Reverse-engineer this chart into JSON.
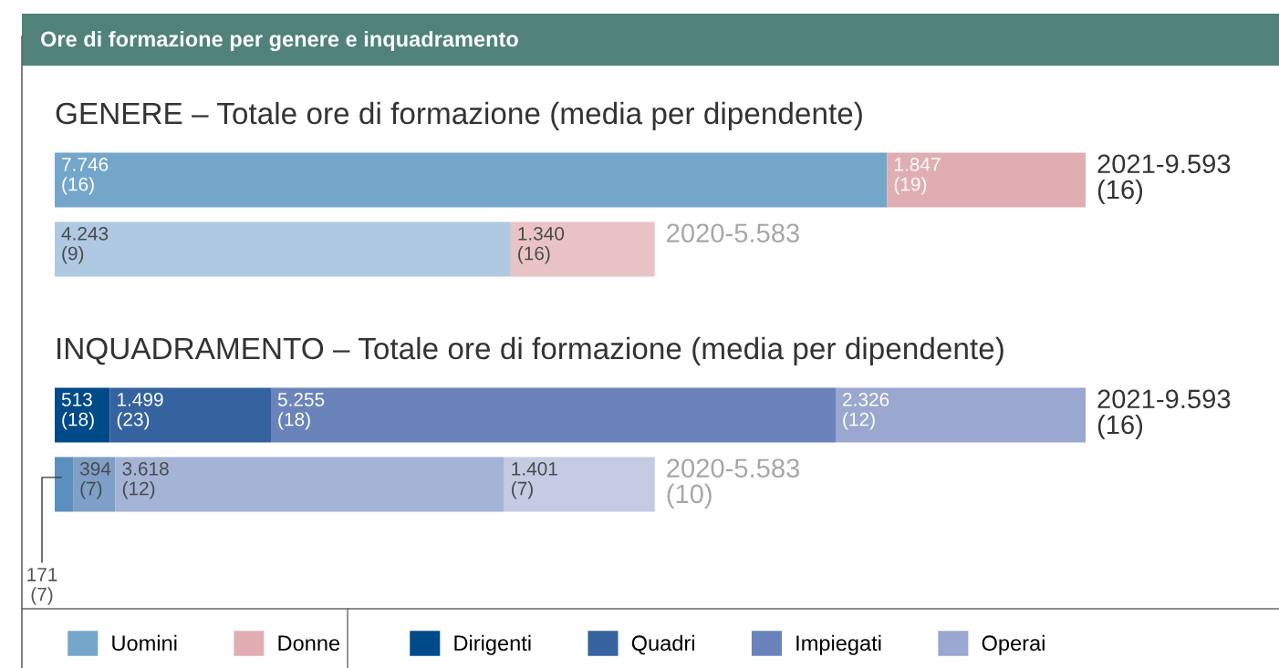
{
  "chart_data": [
    {
      "type": "bar",
      "orientation": "horizontal",
      "stacked": true,
      "title": "Ore di formazione per genere e inquadramento",
      "subtitle": "GENERE – Totale ore di formazione (media per dipendente)",
      "categories": [
        null,
        null
      ],
      "legend": "bottom",
      "series": [
        {
          "name": "Uomini",
          "colors": [
            "#74a6ca",
            "#aec9e1"
          ],
          "values": [
            7746,
            4243
          ],
          "value_labels": [
            "7.746\n(16)",
            "4.243\n(9)"
          ]
        },
        {
          "name": "Donne",
          "colors": [
            "#e0aeb2",
            "#e9c3c6"
          ],
          "values": [
            1847,
            1340
          ],
          "value_labels": [
            "1.847\n(19)",
            "1.340\n(16)"
          ]
        }
      ],
      "totals": [
        "2021-9.593\n(16)",
        "2020-5.583"
      ]
    },
    {
      "type": "bar",
      "orientation": "horizontal",
      "stacked": true,
      "subtitle": "INQUADRAMENTO – Totale ore di formazione (media per dipendente)",
      "categories": [
        null,
        null
      ],
      "legend": "bottom",
      "series": [
        {
          "name": "Dirigenti",
          "colors": [
            "#004a8a",
            "#5b8fbd"
          ],
          "values": [
            513,
            171
          ],
          "value_labels": [
            "513\n(18)",
            "171\n(7)"
          ]
        },
        {
          "name": "Quadri",
          "colors": [
            "#34639f",
            "#7d9fc8"
          ],
          "values": [
            1499,
            394
          ],
          "value_labels": [
            "1.499\n(23)",
            "394\n(7)"
          ]
        },
        {
          "name": "Impiegati",
          "colors": [
            "#6a84bb",
            "#a4b4d6"
          ],
          "values": [
            5255,
            3618
          ],
          "value_labels": [
            "5.255\n(18)",
            "3.618\n(12)"
          ]
        },
        {
          "name": "Operai",
          "colors": [
            "#9aa8d0",
            "#c4cbe3"
          ],
          "values": [
            2326,
            1401
          ],
          "value_labels": [
            "2.326\n(12)",
            "1.401\n(7)"
          ]
        }
      ],
      "totals": [
        "2021-9.593\n(16)",
        "2020-5.583\n(10)"
      ]
    }
  ]
}
